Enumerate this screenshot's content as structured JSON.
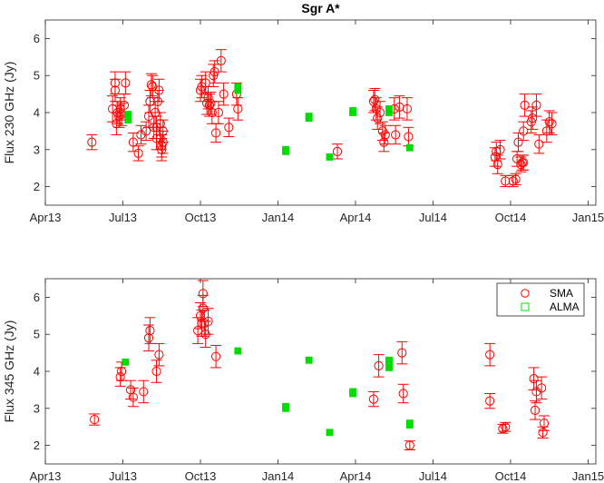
{
  "colors": {
    "sma": "#ff0000",
    "alma": "#00dd00",
    "axis": "#262626"
  },
  "chart_data": [
    {
      "type": "scatter",
      "title": "Sgr A*",
      "xlabel": "",
      "ylabel": "Flux 230 GHz (Jy)",
      "x_unit": "months since 2013-04-01",
      "xlim": [
        0,
        21.3
      ],
      "ylim": [
        1.5,
        6.5
      ],
      "yticks": [
        2,
        3,
        4,
        5,
        6
      ],
      "xtick_values": [
        0,
        3,
        6,
        9,
        12,
        15,
        18,
        21
      ],
      "xtick_labels": [
        "Apr13",
        "Jul13",
        "Oct13",
        "Jan14",
        "Apr14",
        "Jul14",
        "Oct14",
        "Jan15"
      ],
      "series": [
        {
          "name": "SMA",
          "marker": "circle",
          "points": [
            {
              "x": 1.8,
              "y": 3.2,
              "err": 0.2
            },
            {
              "x": 2.6,
              "y": 4.1,
              "err": 0.35
            },
            {
              "x": 2.7,
              "y": 4.8,
              "err": 0.3
            },
            {
              "x": 2.7,
              "y": 4.6,
              "err": 0.3
            },
            {
              "x": 2.75,
              "y": 3.7,
              "err": 0.3
            },
            {
              "x": 2.8,
              "y": 4.0,
              "err": 0.3
            },
            {
              "x": 2.85,
              "y": 3.9,
              "err": 0.3
            },
            {
              "x": 2.9,
              "y": 4.1,
              "err": 0.3
            },
            {
              "x": 2.95,
              "y": 3.95,
              "err": 0.3
            },
            {
              "x": 3.05,
              "y": 4.2,
              "err": 0.3
            },
            {
              "x": 3.1,
              "y": 4.8,
              "err": 0.3
            },
            {
              "x": 3.4,
              "y": 3.2,
              "err": 0.25
            },
            {
              "x": 3.6,
              "y": 2.9,
              "err": 0.2
            },
            {
              "x": 3.7,
              "y": 3.4,
              "err": 0.25
            },
            {
              "x": 3.9,
              "y": 3.5,
              "err": 0.25
            },
            {
              "x": 4.0,
              "y": 3.9,
              "err": 0.3
            },
            {
              "x": 4.05,
              "y": 4.3,
              "err": 0.3
            },
            {
              "x": 4.1,
              "y": 4.75,
              "err": 0.3
            },
            {
              "x": 4.15,
              "y": 4.7,
              "err": 0.3
            },
            {
              "x": 4.2,
              "y": 3.6,
              "err": 0.3
            },
            {
              "x": 4.25,
              "y": 4.0,
              "err": 0.3
            },
            {
              "x": 4.3,
              "y": 3.3,
              "err": 0.3
            },
            {
              "x": 4.3,
              "y": 3.6,
              "err": 0.3
            },
            {
              "x": 4.35,
              "y": 4.3,
              "err": 0.3
            },
            {
              "x": 4.4,
              "y": 4.6,
              "err": 0.3
            },
            {
              "x": 4.45,
              "y": 3.7,
              "err": 0.3
            },
            {
              "x": 4.45,
              "y": 3.3,
              "err": 0.3
            },
            {
              "x": 4.5,
              "y": 3.0,
              "err": 0.3
            },
            {
              "x": 4.5,
              "y": 3.1,
              "err": 0.3
            },
            {
              "x": 4.55,
              "y": 3.5,
              "err": 0.3
            },
            {
              "x": 4.55,
              "y": 3.2,
              "err": 0.3
            },
            {
              "x": 6.0,
              "y": 4.6,
              "err": 0.3
            },
            {
              "x": 6.05,
              "y": 4.7,
              "err": 0.3
            },
            {
              "x": 6.2,
              "y": 4.8,
              "err": 0.3
            },
            {
              "x": 6.25,
              "y": 4.25,
              "err": 0.3
            },
            {
              "x": 6.3,
              "y": 4.4,
              "err": 0.3
            },
            {
              "x": 6.35,
              "y": 4.2,
              "err": 0.3
            },
            {
              "x": 6.4,
              "y": 4.25,
              "err": 0.3
            },
            {
              "x": 6.45,
              "y": 4.0,
              "err": 0.3
            },
            {
              "x": 6.5,
              "y": 5.0,
              "err": 0.3
            },
            {
              "x": 6.55,
              "y": 5.1,
              "err": 0.3
            },
            {
              "x": 6.6,
              "y": 3.45,
              "err": 0.25
            },
            {
              "x": 6.7,
              "y": 4.0,
              "err": 0.3
            },
            {
              "x": 6.8,
              "y": 5.4,
              "err": 0.3
            },
            {
              "x": 6.9,
              "y": 4.5,
              "err": 0.3
            },
            {
              "x": 7.1,
              "y": 3.6,
              "err": 0.25
            },
            {
              "x": 7.4,
              "y": 4.5,
              "err": 0.3
            },
            {
              "x": 7.45,
              "y": 4.1,
              "err": 0.3
            },
            {
              "x": 11.3,
              "y": 2.95,
              "err": 0.2
            },
            {
              "x": 12.7,
              "y": 4.3,
              "err": 0.3
            },
            {
              "x": 12.75,
              "y": 4.35,
              "err": 0.3
            },
            {
              "x": 12.8,
              "y": 4.1,
              "err": 0.3
            },
            {
              "x": 12.85,
              "y": 3.85,
              "err": 0.3
            },
            {
              "x": 12.95,
              "y": 4.0,
              "err": 0.3
            },
            {
              "x": 13.05,
              "y": 3.5,
              "err": 0.25
            },
            {
              "x": 13.1,
              "y": 3.2,
              "err": 0.25
            },
            {
              "x": 13.15,
              "y": 3.4,
              "err": 0.25
            },
            {
              "x": 13.5,
              "y": 4.1,
              "err": 0.3
            },
            {
              "x": 13.55,
              "y": 3.4,
              "err": 0.25
            },
            {
              "x": 13.7,
              "y": 4.15,
              "err": 0.3
            },
            {
              "x": 14.0,
              "y": 4.1,
              "err": 0.3
            },
            {
              "x": 14.05,
              "y": 3.35,
              "err": 0.25
            },
            {
              "x": 17.4,
              "y": 2.8,
              "err": 0.25
            },
            {
              "x": 17.45,
              "y": 2.95,
              "err": 0.25
            },
            {
              "x": 17.5,
              "y": 2.6,
              "err": 0.25
            },
            {
              "x": 17.6,
              "y": 3.0,
              "err": 0.25
            },
            {
              "x": 17.8,
              "y": 2.15,
              "err": 0.15
            },
            {
              "x": 18.1,
              "y": 2.15,
              "err": 0.15
            },
            {
              "x": 18.2,
              "y": 2.2,
              "err": 0.15
            },
            {
              "x": 18.25,
              "y": 2.75,
              "err": 0.2
            },
            {
              "x": 18.3,
              "y": 3.2,
              "err": 0.25
            },
            {
              "x": 18.4,
              "y": 2.6,
              "err": 0.2
            },
            {
              "x": 18.45,
              "y": 2.65,
              "err": 0.2
            },
            {
              "x": 18.5,
              "y": 2.65,
              "err": 0.2
            },
            {
              "x": 18.5,
              "y": 3.5,
              "err": 0.25
            },
            {
              "x": 18.55,
              "y": 4.2,
              "err": 0.3
            },
            {
              "x": 18.8,
              "y": 3.75,
              "err": 0.3
            },
            {
              "x": 18.85,
              "y": 3.85,
              "err": 0.3
            },
            {
              "x": 19.0,
              "y": 4.2,
              "err": 0.3
            },
            {
              "x": 19.1,
              "y": 3.15,
              "err": 0.25
            },
            {
              "x": 19.4,
              "y": 3.5,
              "err": 0.3
            },
            {
              "x": 19.5,
              "y": 3.75,
              "err": 0.3
            },
            {
              "x": 19.6,
              "y": 3.7,
              "err": 0.3
            }
          ]
        },
        {
          "name": "ALMA",
          "marker": "square",
          "points": [
            {
              "x": 3.2,
              "y": 3.8
            },
            {
              "x": 3.2,
              "y": 3.95
            },
            {
              "x": 7.45,
              "y": 4.7
            },
            {
              "x": 7.45,
              "y": 4.6
            },
            {
              "x": 9.3,
              "y": 3.0
            },
            {
              "x": 9.3,
              "y": 2.95
            },
            {
              "x": 10.2,
              "y": 3.85
            },
            {
              "x": 10.2,
              "y": 3.9
            },
            {
              "x": 11.0,
              "y": 2.8
            },
            {
              "x": 11.9,
              "y": 4.0
            },
            {
              "x": 11.9,
              "y": 4.05
            },
            {
              "x": 13.3,
              "y": 4.1
            },
            {
              "x": 13.3,
              "y": 4.0
            },
            {
              "x": 14.1,
              "y": 3.05
            }
          ]
        }
      ]
    },
    {
      "type": "scatter",
      "title": "",
      "xlabel": "",
      "ylabel": "Flux 345 GHz (Jy)",
      "x_unit": "months since 2013-04-01",
      "xlim": [
        0,
        21.3
      ],
      "ylim": [
        1.5,
        6.5
      ],
      "yticks": [
        2,
        3,
        4,
        5,
        6
      ],
      "xtick_values": [
        0,
        3,
        6,
        9,
        12,
        15,
        18,
        21
      ],
      "xtick_labels": [
        "Apr13",
        "Jul13",
        "Oct13",
        "Jan14",
        "Apr14",
        "Jul14",
        "Oct14",
        "Jan15"
      ],
      "legend": {
        "position": "top-right",
        "entries": [
          "SMA",
          "ALMA"
        ]
      },
      "series": [
        {
          "name": "SMA",
          "marker": "circle",
          "points": [
            {
              "x": 1.9,
              "y": 2.7,
              "err": 0.15
            },
            {
              "x": 2.9,
              "y": 3.85,
              "err": 0.25
            },
            {
              "x": 2.95,
              "y": 4.0,
              "err": 0.25
            },
            {
              "x": 3.3,
              "y": 3.5,
              "err": 0.25
            },
            {
              "x": 3.4,
              "y": 3.3,
              "err": 0.25
            },
            {
              "x": 3.8,
              "y": 3.45,
              "err": 0.3
            },
            {
              "x": 4.0,
              "y": 4.9,
              "err": 0.35
            },
            {
              "x": 4.05,
              "y": 5.1,
              "err": 0.35
            },
            {
              "x": 4.3,
              "y": 4.0,
              "err": 0.3
            },
            {
              "x": 4.4,
              "y": 4.45,
              "err": 0.3
            },
            {
              "x": 5.9,
              "y": 5.1,
              "err": 0.35
            },
            {
              "x": 6.0,
              "y": 5.5,
              "err": 0.35
            },
            {
              "x": 6.05,
              "y": 5.3,
              "err": 0.35
            },
            {
              "x": 6.1,
              "y": 6.1,
              "err": 0.35
            },
            {
              "x": 6.1,
              "y": 5.7,
              "err": 0.35
            },
            {
              "x": 6.15,
              "y": 5.3,
              "err": 0.35
            },
            {
              "x": 6.2,
              "y": 5.0,
              "err": 0.35
            },
            {
              "x": 6.3,
              "y": 5.35,
              "err": 0.35
            },
            {
              "x": 6.6,
              "y": 4.4,
              "err": 0.3
            },
            {
              "x": 12.7,
              "y": 3.25,
              "err": 0.2
            },
            {
              "x": 12.9,
              "y": 4.15,
              "err": 0.3
            },
            {
              "x": 13.8,
              "y": 4.5,
              "err": 0.3
            },
            {
              "x": 13.85,
              "y": 3.4,
              "err": 0.25
            },
            {
              "x": 14.1,
              "y": 2.0,
              "err": 0.12
            },
            {
              "x": 17.2,
              "y": 4.45,
              "err": 0.3
            },
            {
              "x": 17.2,
              "y": 3.2,
              "err": 0.2
            },
            {
              "x": 17.7,
              "y": 2.45,
              "err": 0.12
            },
            {
              "x": 17.8,
              "y": 2.5,
              "err": 0.12
            },
            {
              "x": 18.9,
              "y": 3.8,
              "err": 0.3
            },
            {
              "x": 18.95,
              "y": 2.95,
              "err": 0.25
            },
            {
              "x": 19.0,
              "y": 3.45,
              "err": 0.3
            },
            {
              "x": 19.2,
              "y": 3.55,
              "err": 0.3
            },
            {
              "x": 19.25,
              "y": 2.35,
              "err": 0.15
            },
            {
              "x": 19.3,
              "y": 2.6,
              "err": 0.2
            }
          ]
        },
        {
          "name": "ALMA",
          "marker": "square",
          "points": [
            {
              "x": 3.1,
              "y": 4.25
            },
            {
              "x": 7.45,
              "y": 4.55
            },
            {
              "x": 9.3,
              "y": 3.05
            },
            {
              "x": 9.3,
              "y": 3.0
            },
            {
              "x": 10.2,
              "y": 4.3
            },
            {
              "x": 11.0,
              "y": 2.35
            },
            {
              "x": 11.9,
              "y": 3.45
            },
            {
              "x": 11.9,
              "y": 3.4
            },
            {
              "x": 13.3,
              "y": 4.3
            },
            {
              "x": 13.3,
              "y": 4.25
            },
            {
              "x": 13.3,
              "y": 4.1
            },
            {
              "x": 14.1,
              "y": 2.6
            },
            {
              "x": 14.1,
              "y": 2.55
            }
          ]
        }
      ]
    }
  ]
}
